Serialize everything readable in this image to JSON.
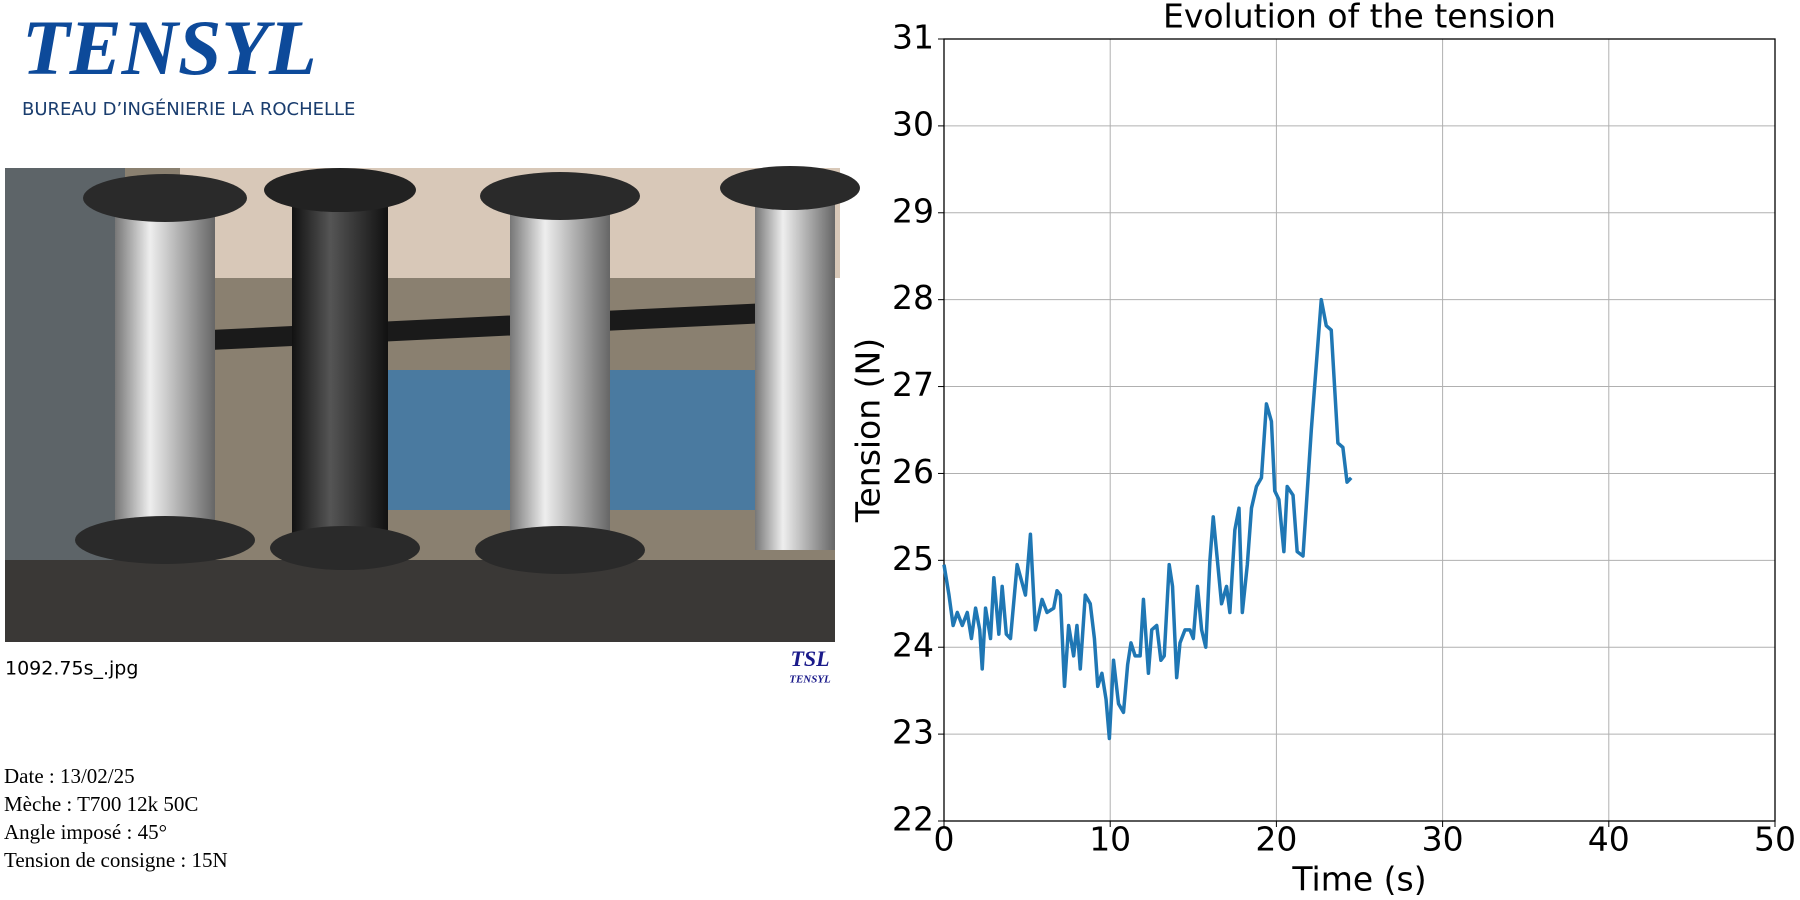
{
  "header": {
    "title": "TENSYL",
    "subtitle": "BUREAU D’INGÉNIERIE LA ROCHELLE"
  },
  "photo": {
    "caption": "1092.75s_.jpg",
    "watermark": {
      "mark": "TSL",
      "name": "TENSYL"
    }
  },
  "info": [
    "Date : 13/02/25",
    "Mèche : T700 12k 50C",
    "Angle imposé : 45°",
    "Tension de consigne : 15N"
  ],
  "chart_data": {
    "type": "line",
    "title": "Evolution of the tension",
    "xlabel": "Time (s)",
    "ylabel": "Tension (N)",
    "x": [
      0,
      0.3,
      0.55,
      0.8,
      1.1,
      1.4,
      1.65,
      1.9,
      2.15,
      2.3,
      2.5,
      2.8,
      3.0,
      3.3,
      3.5,
      3.75,
      4.0,
      4.4,
      4.9,
      5.2,
      5.5,
      5.9,
      6.2,
      6.6,
      6.8,
      7.0,
      7.25,
      7.5,
      7.8,
      8.0,
      8.2,
      8.5,
      8.8,
      9.05,
      9.25,
      9.5,
      9.75,
      9.95,
      10.2,
      10.5,
      10.8,
      11.05,
      11.25,
      11.5,
      11.8,
      12.0,
      12.3,
      12.5,
      12.8,
      13.05,
      13.25,
      13.55,
      13.75,
      14.0,
      14.2,
      14.5,
      14.8,
      15.0,
      15.25,
      15.5,
      15.75,
      16.0,
      16.2,
      16.5,
      16.7,
      17.0,
      17.2,
      17.5,
      17.75,
      17.95,
      18.25,
      18.5,
      18.8,
      19.1,
      19.4,
      19.7,
      19.9,
      20.15,
      20.45,
      20.65,
      21.0,
      21.25,
      21.6,
      22.1,
      22.7,
      23.0,
      23.3,
      23.7,
      24.0,
      24.25,
      24.5
    ],
    "series": [
      {
        "name": "Tension",
        "color": "#1f77b4",
        "values": [
          24.95,
          24.6,
          24.25,
          24.4,
          24.25,
          24.4,
          24.1,
          24.45,
          24.2,
          23.75,
          24.45,
          24.1,
          24.8,
          24.15,
          24.7,
          24.15,
          24.1,
          24.95,
          24.6,
          25.3,
          24.2,
          24.55,
          24.4,
          24.45,
          24.65,
          24.6,
          23.55,
          24.25,
          23.9,
          24.25,
          23.75,
          24.6,
          24.5,
          24.1,
          23.55,
          23.7,
          23.4,
          22.95,
          23.85,
          23.35,
          23.25,
          23.8,
          24.05,
          23.9,
          23.9,
          24.55,
          23.7,
          24.2,
          24.25,
          23.85,
          23.9,
          24.95,
          24.7,
          23.65,
          24.05,
          24.2,
          24.2,
          24.1,
          24.7,
          24.2,
          24.0,
          25.0,
          25.5,
          24.9,
          24.5,
          24.7,
          24.4,
          25.35,
          25.6,
          24.4,
          24.95,
          25.6,
          25.85,
          25.95,
          26.8,
          26.6,
          25.8,
          25.7,
          25.1,
          25.85,
          25.75,
          25.1,
          25.05,
          26.5,
          28.0,
          27.7,
          27.65,
          26.35,
          26.3,
          25.9,
          25.95
        ]
      }
    ],
    "xlim": [
      0,
      50
    ],
    "xticks": [
      0,
      10,
      20,
      30,
      40,
      50
    ],
    "ylim": [
      22,
      31
    ],
    "yticks": [
      22,
      23,
      24,
      25,
      26,
      27,
      28,
      29,
      30,
      31
    ],
    "grid": true
  }
}
